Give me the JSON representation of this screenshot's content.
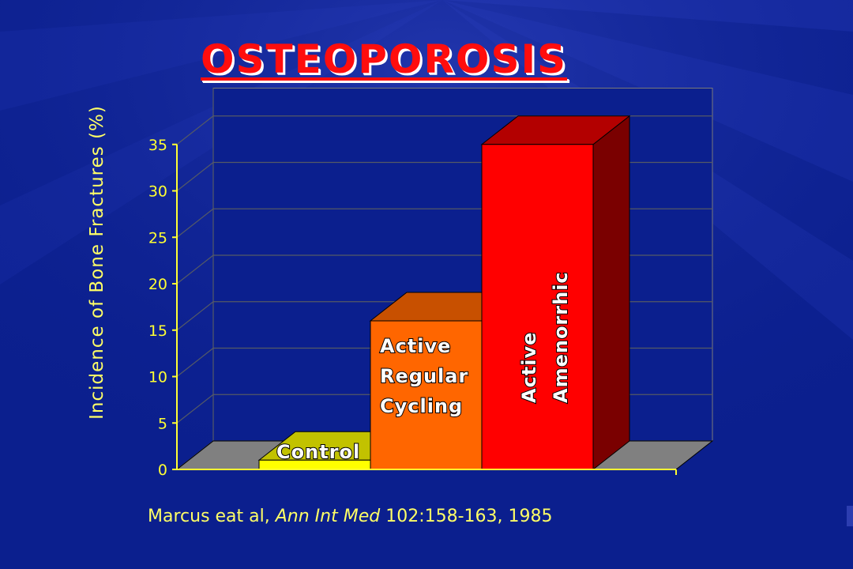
{
  "slide": {
    "title": "OSTEOPOROSIS",
    "citation_authors": "Marcus eat al, ",
    "citation_journal": "Ann Int Med",
    "citation_ref": " 102:158-163, 1985"
  },
  "colors": {
    "background": "#0b1f8e",
    "title": "#ff0d0d",
    "axis_text": "#ffff33",
    "control": "#ffff00",
    "regular": "#ff6600",
    "amenorrhic": "#ff0000"
  },
  "chart_data": {
    "type": "bar",
    "style": "3d-column",
    "ylabel": "Incidence of Bone Fractures (%)",
    "ylim": [
      0,
      35
    ],
    "yticks": [
      "0",
      "5",
      "10",
      "15",
      "20",
      "25",
      "30",
      "35"
    ],
    "grid": true,
    "legend": "none",
    "categories": [
      "Control",
      "Active Regular Cycling",
      "Active Amenorrhic"
    ],
    "category_label_lines": [
      [
        "Control"
      ],
      [
        "Active",
        "Regular",
        "Cycling"
      ],
      [
        "Active",
        "Amenorrhic"
      ]
    ],
    "values": [
      1,
      16,
      35
    ]
  }
}
